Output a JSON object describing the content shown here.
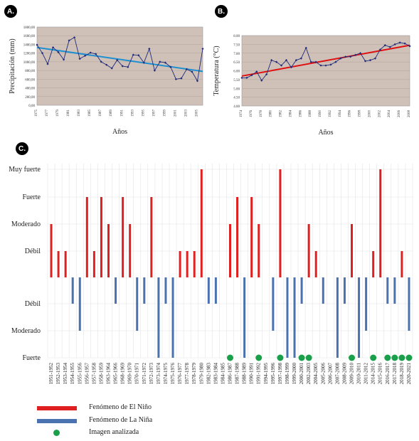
{
  "panels": {
    "a": {
      "label": "A."
    },
    "b": {
      "label": "B."
    },
    "c": {
      "label": "C."
    }
  },
  "chart_data": [
    {
      "id": "a",
      "type": "line",
      "ylabel": "Precipitación (mm)",
      "xlabel": "Años",
      "ylim": [
        0,
        1800
      ],
      "yticks": [
        "0,00",
        "200,00",
        "400,00",
        "600,00",
        "800,00",
        "1000,00",
        "1200,00",
        "1400,00",
        "1600,00",
        "1800,00"
      ],
      "xticks": [
        "1975",
        "1977",
        "1979",
        "1981",
        "1983",
        "1985",
        "1987",
        "1989",
        "1991",
        "1993",
        "1995",
        "1997",
        "1999",
        "2001",
        "2003",
        "2005"
      ],
      "x": [
        1975,
        1976,
        1977,
        1978,
        1979,
        1980,
        1981,
        1982,
        1983,
        1984,
        1985,
        1986,
        1987,
        1988,
        1989,
        1990,
        1991,
        1992,
        1993,
        1994,
        1995,
        1996,
        1997,
        1998,
        1999,
        2000,
        2001,
        2002,
        2003,
        2004,
        2005,
        2006
      ],
      "values": [
        1390,
        1200,
        950,
        1330,
        1220,
        1050,
        1490,
        1560,
        1070,
        1140,
        1210,
        1180,
        1000,
        930,
        850,
        1040,
        900,
        880,
        1160,
        1150,
        980,
        1300,
        800,
        1000,
        980,
        880,
        600,
        620,
        830,
        770,
        560,
        1300
      ],
      "trend": [
        1330,
        780
      ],
      "series_color": "#1f2a7a",
      "trend_color": "#1e90d0",
      "plot_bg": "#cfc0b8"
    },
    {
      "id": "b",
      "type": "line",
      "ylabel": "Temperatura (°C)",
      "xlabel": "Años",
      "ylim": [
        4.0,
        8.0
      ],
      "yticks": [
        "4.00",
        "4.50",
        "5.00",
        "5.50",
        "6.00",
        "6.50",
        "7.00",
        "7.50",
        "8.00"
      ],
      "xticks": [
        "1974",
        "1976",
        "1978",
        "1980",
        "1982",
        "1984",
        "1986",
        "1988",
        "1990",
        "1992",
        "1994",
        "1996",
        "1998",
        "2000",
        "2002",
        "2004",
        "2006",
        "2008"
      ],
      "x": [
        1974,
        1975,
        1976,
        1977,
        1978,
        1979,
        1980,
        1981,
        1982,
        1983,
        1984,
        1985,
        1986,
        1987,
        1988,
        1989,
        1990,
        1991,
        1992,
        1993,
        1994,
        1995,
        1996,
        1997,
        1998,
        1999,
        2000,
        2001,
        2002,
        2003,
        2004,
        2005,
        2006,
        2007,
        2008
      ],
      "values": [
        5.6,
        5.6,
        5.75,
        5.95,
        5.45,
        5.8,
        6.6,
        6.5,
        6.3,
        6.6,
        6.2,
        6.6,
        6.7,
        7.3,
        6.5,
        6.5,
        6.3,
        6.3,
        6.35,
        6.5,
        6.7,
        6.8,
        6.8,
        6.9,
        7.0,
        6.55,
        6.6,
        6.7,
        7.2,
        7.45,
        7.35,
        7.5,
        7.6,
        7.55,
        7.4
      ],
      "trend": [
        5.7,
        7.45
      ],
      "series_color": "#1f2a7a",
      "trend_color": "#e01010",
      "plot_bg": "#cfc0b8"
    },
    {
      "id": "c",
      "type": "bar",
      "ylabels_up": [
        "Muy fuerte",
        "Fuerte",
        "Moderado",
        "Débil"
      ],
      "ylabels_down": [
        "Débil",
        "Moderado",
        "Fuerte"
      ],
      "categories": [
        "1951-1952",
        "1952-1953",
        "1953-1954",
        "1954-1955",
        "1955-1956",
        "1956-1957",
        "1957-1958",
        "1958-1959",
        "1963-1964",
        "1965-1966",
        "1968-1969",
        "1969-1970",
        "1970-1971",
        "1971-1972",
        "1972-1973",
        "1973-1974",
        "1974-1975",
        "1975-1976",
        "1976-1977",
        "1977-1978",
        "1978-1979",
        "1979-1980",
        "1982-1983",
        "1983-1984",
        "1984-1985",
        "1986-1987",
        "1987-1988",
        "1988-1989",
        "1990-1991",
        "1991-1992",
        "1994-1995",
        "1995-1996",
        "1997-1998",
        "1998-1999",
        "1999-2000",
        "2000-2001",
        "2002-2003",
        "2004-2005",
        "2005-2006",
        "2006-2007",
        "2007-2008",
        "2008-2009",
        "2009-2010",
        "2010-2011",
        "2011-2012",
        "2014-2015",
        "2015-2016",
        "2016-2017",
        "2017-2018",
        "2018-2019",
        "2020-2021"
      ],
      "el_nino": [
        2,
        1,
        1,
        0,
        0,
        3,
        1,
        3,
        2,
        0,
        3,
        2,
        0,
        0,
        3,
        0,
        0,
        0,
        1,
        1,
        1,
        4,
        0,
        0,
        0,
        2,
        3,
        0,
        3,
        2,
        0,
        0,
        4,
        0,
        0,
        0,
        2,
        1,
        0,
        0,
        0,
        0,
        2,
        0,
        0,
        1,
        4,
        0,
        0,
        1,
        0
      ],
      "la_nina": [
        0,
        0,
        0,
        1,
        2,
        0,
        0,
        0,
        0,
        1,
        0,
        0,
        2,
        1,
        0,
        3,
        1,
        3,
        0,
        0,
        0,
        0,
        1,
        1,
        0,
        0,
        0,
        3,
        0,
        0,
        0,
        2,
        0,
        3,
        3,
        1,
        0,
        0,
        1,
        0,
        3,
        1,
        0,
        3,
        2,
        0,
        0,
        1,
        1,
        0,
        2
      ],
      "analyzed": [
        "1986-1987",
        "1991-1992",
        "1997-1998",
        "2000-2001",
        "2002-2003",
        "2009-2010",
        "2014-2015",
        "2016-2017",
        "2017-2018",
        "2018-2019",
        "2020-2021"
      ],
      "legend": [
        "Fenómeno de El Niño",
        "Fenómeno de La Niña",
        "Imagen analizada"
      ],
      "colors": {
        "el_nino": "#e02020",
        "la_nina": "#4a72b0",
        "analyzed": "#1aa04a"
      }
    }
  ]
}
